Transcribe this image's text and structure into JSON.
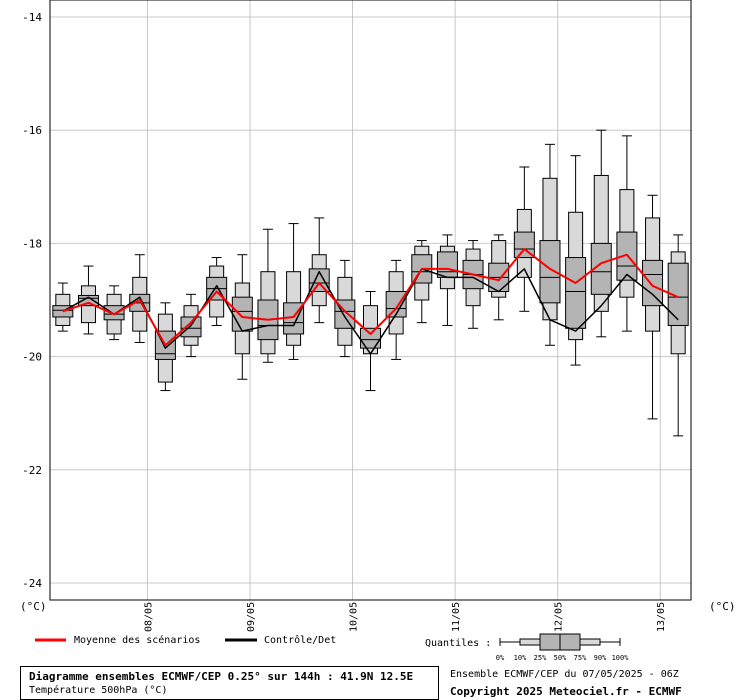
{
  "title": "Diagramme ensembles ECMWF/CEP 0.25° sur 144h : 41.9N 12.5E",
  "subtitle": "Température 500hPa (°C)",
  "run_info": "Ensemble ECMWF/CEP du 07/05/2025 - 06Z",
  "copyright": "Copyright 2025 Meteociel.fr - ECMWF",
  "legend": {
    "mean_label": "Moyenne des scénarios",
    "control_label": "Contrôle/Det",
    "quantiles_label": "Quantiles :",
    "quantile_ticks": [
      "0%",
      "10%",
      "25%",
      "50%",
      "75%",
      "90%",
      "100%"
    ]
  },
  "colors": {
    "mean": "#ff0000",
    "control": "#000000",
    "box_light": "#d9d9d9",
    "box_dark": "#b4b4b4",
    "grid": "#c8c8c8"
  },
  "chart_data": {
    "type": "boxplot",
    "ylim": [
      -24.3,
      -13.7
    ],
    "y_ticks": [
      "-14",
      "-16",
      "-18",
      "-20",
      "-22",
      "-24"
    ],
    "y_tick_values": [
      -14,
      -16,
      -18,
      -20,
      -22,
      -24
    ],
    "y_unit_left": "(°C)",
    "y_unit_right": "(°C)",
    "grid": true,
    "x_dates": [
      "08/05",
      "09/05",
      "10/05",
      "11/05",
      "12/05",
      "13/05"
    ],
    "x_date_steps": [
      3.3,
      7.3,
      11.3,
      15.3,
      19.3,
      23.3
    ],
    "steps": [
      {
        "min": -19.55,
        "p10": -19.45,
        "p25": -19.3,
        "median": -19.18,
        "p75": -19.1,
        "p90": -18.9,
        "max": -18.7
      },
      {
        "min": -19.6,
        "p10": -19.4,
        "p25": -19.1,
        "median": -18.97,
        "p75": -18.92,
        "p90": -18.75,
        "max": -18.4
      },
      {
        "min": -19.7,
        "p10": -19.6,
        "p25": -19.35,
        "median": -19.25,
        "p75": -19.1,
        "p90": -18.9,
        "max": -18.75
      },
      {
        "min": -19.75,
        "p10": -19.55,
        "p25": -19.2,
        "median": -19.05,
        "p75": -18.9,
        "p90": -18.6,
        "max": -18.2
      },
      {
        "min": -20.6,
        "p10": -20.45,
        "p25": -20.05,
        "median": -19.95,
        "p75": -19.55,
        "p90": -19.25,
        "max": -19.05
      },
      {
        "min": -20.0,
        "p10": -19.8,
        "p25": -19.65,
        "median": -19.5,
        "p75": -19.3,
        "p90": -19.1,
        "max": -18.9
      },
      {
        "min": -19.45,
        "p10": -19.3,
        "p25": -19.0,
        "median": -18.8,
        "p75": -18.6,
        "p90": -18.4,
        "max": -18.25
      },
      {
        "min": -20.4,
        "p10": -19.95,
        "p25": -19.55,
        "median": -19.2,
        "p75": -18.95,
        "p90": -18.7,
        "max": -18.2
      },
      {
        "min": -20.1,
        "p10": -19.95,
        "p25": -19.7,
        "median": -19.45,
        "p75": -19.0,
        "p90": -18.5,
        "max": -17.75
      },
      {
        "min": -20.05,
        "p10": -19.8,
        "p25": -19.6,
        "median": -19.4,
        "p75": -19.05,
        "p90": -18.5,
        "max": -17.65
      },
      {
        "min": -19.4,
        "p10": -19.1,
        "p25": -18.85,
        "median": -18.7,
        "p75": -18.45,
        "p90": -18.2,
        "max": -17.55
      },
      {
        "min": -20.0,
        "p10": -19.8,
        "p25": -19.5,
        "median": -19.2,
        "p75": -19.0,
        "p90": -18.6,
        "max": -18.3
      },
      {
        "min": -20.6,
        "p10": -19.95,
        "p25": -19.85,
        "median": -19.7,
        "p75": -19.5,
        "p90": -19.1,
        "max": -18.85
      },
      {
        "min": -20.05,
        "p10": -19.6,
        "p25": -19.3,
        "median": -19.15,
        "p75": -18.85,
        "p90": -18.5,
        "max": -18.3
      },
      {
        "min": -19.4,
        "p10": -19.0,
        "p25": -18.7,
        "median": -18.5,
        "p75": -18.2,
        "p90": -18.05,
        "max": -17.95
      },
      {
        "min": -19.45,
        "p10": -18.8,
        "p25": -18.6,
        "median": -18.5,
        "p75": -18.15,
        "p90": -18.05,
        "max": -17.85
      },
      {
        "min": -19.5,
        "p10": -19.1,
        "p25": -18.8,
        "median": -18.55,
        "p75": -18.3,
        "p90": -18.1,
        "max": -17.95
      },
      {
        "min": -19.35,
        "p10": -18.95,
        "p25": -18.85,
        "median": -18.6,
        "p75": -18.35,
        "p90": -17.95,
        "max": -17.85
      },
      {
        "min": -19.2,
        "p10": -18.6,
        "p25": -18.25,
        "median": -18.1,
        "p75": -17.8,
        "p90": -17.4,
        "max": -16.65
      },
      {
        "min": -19.8,
        "p10": -19.35,
        "p25": -19.05,
        "median": -18.6,
        "p75": -17.95,
        "p90": -16.85,
        "max": -16.25
      },
      {
        "min": -20.15,
        "p10": -19.7,
        "p25": -19.5,
        "median": -18.85,
        "p75": -18.25,
        "p90": -17.45,
        "max": -16.45
      },
      {
        "min": -19.65,
        "p10": -19.2,
        "p25": -18.9,
        "median": -18.5,
        "p75": -18.0,
        "p90": -16.8,
        "max": -16.0
      },
      {
        "min": -19.55,
        "p10": -18.95,
        "p25": -18.65,
        "median": -18.4,
        "p75": -17.8,
        "p90": -17.05,
        "max": -16.1
      },
      {
        "min": -21.1,
        "p10": -19.55,
        "p25": -19.1,
        "median": -18.55,
        "p75": -18.3,
        "p90": -17.55,
        "max": -17.15
      },
      {
        "min": -21.4,
        "p10": -19.95,
        "p25": -19.45,
        "median": -18.95,
        "p75": -18.35,
        "p90": -18.15,
        "max": -17.85
      }
    ],
    "series": [
      {
        "name": "Moyenne des scénarios",
        "color": "#ff0000",
        "values": [
          -19.2,
          -19.05,
          -19.25,
          -19.0,
          -19.8,
          -19.4,
          -18.85,
          -19.3,
          -19.35,
          -19.3,
          -18.7,
          -19.2,
          -19.6,
          -19.15,
          -18.45,
          -18.45,
          -18.55,
          -18.65,
          -18.1,
          -18.45,
          -18.7,
          -18.35,
          -18.2,
          -18.75,
          -18.95
        ]
      },
      {
        "name": "Contrôle/Det",
        "color": "#000000",
        "values": [
          -19.2,
          -18.95,
          -19.25,
          -18.95,
          -19.85,
          -19.45,
          -18.75,
          -19.55,
          -19.45,
          -19.45,
          -18.5,
          -19.3,
          -19.95,
          -19.25,
          -18.45,
          -18.6,
          -18.6,
          -18.85,
          -18.45,
          -19.35,
          -19.55,
          -19.1,
          -18.55,
          -18.9,
          -19.35
        ]
      }
    ]
  }
}
